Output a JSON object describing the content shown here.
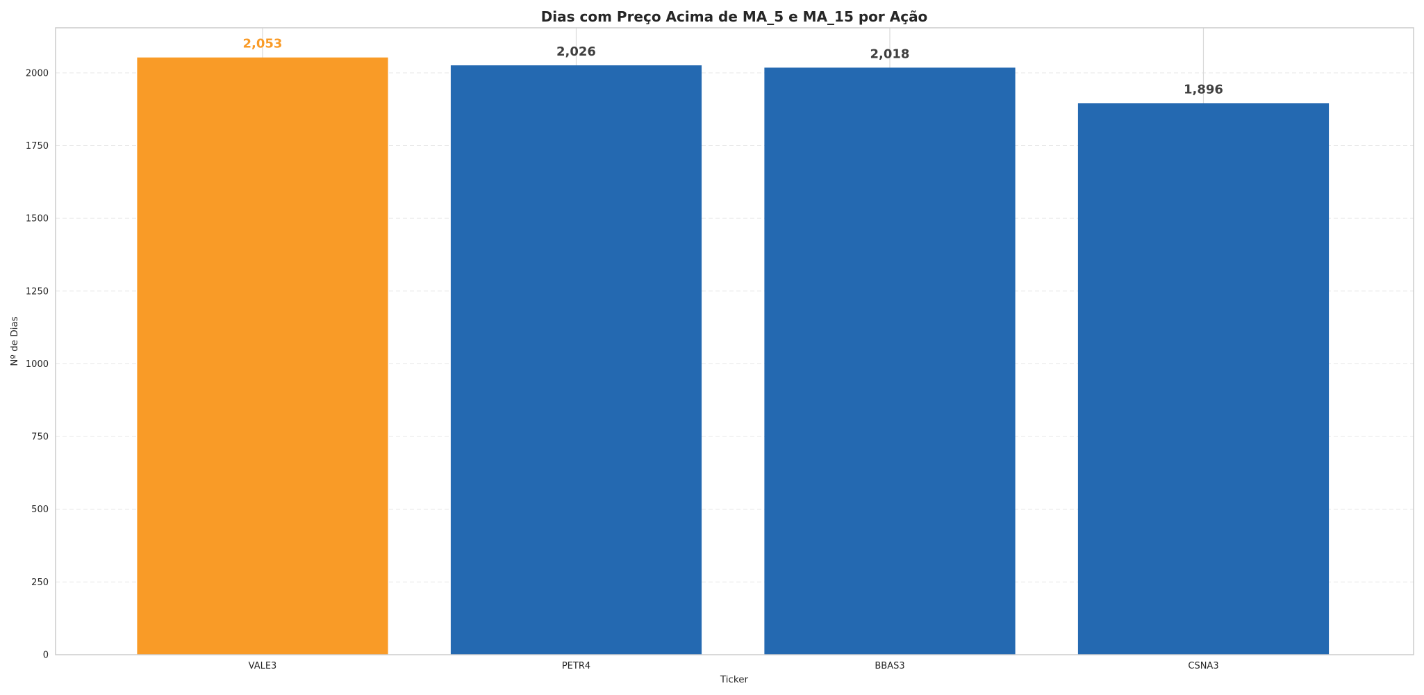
{
  "chart_data": {
    "type": "bar",
    "title": "Dias com Preço Acima de MA_5 e MA_15 por Ação",
    "xlabel": "Ticker",
    "ylabel": "Nº de Dias",
    "categories": [
      "VALE3",
      "PETR4",
      "BBAS3",
      "CSNA3"
    ],
    "values": [
      2053,
      2026,
      2018,
      1896
    ],
    "value_labels": [
      "2,053",
      "2,026",
      "2,018",
      "1,896"
    ],
    "ylim": [
      0,
      2155
    ],
    "yticks": [
      0,
      250,
      500,
      750,
      1000,
      1250,
      1500,
      1750,
      2000
    ],
    "grid": true,
    "colors": {
      "highlight_bar": "#F99B27",
      "default_bar": "#2469B1",
      "highlight_label": "#F99B27",
      "default_label": "#3F3F3F",
      "grid": "#E6E6E6",
      "spine": "#CCCCCC"
    },
    "highlight_index": 0
  }
}
